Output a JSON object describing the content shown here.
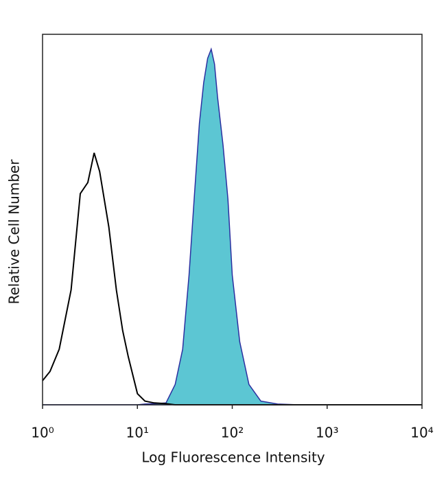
{
  "chart_data": {
    "type": "line",
    "xlabel": "Log Fluorescence Intensity",
    "ylabel": "Relative Cell Number",
    "xscale": "log",
    "xlim": [
      1,
      10000
    ],
    "ylim": [
      0,
      100
    ],
    "xticks": [
      {
        "value": 1,
        "label": "10⁰"
      },
      {
        "value": 10,
        "label": "10¹"
      },
      {
        "value": 100,
        "label": "10²"
      },
      {
        "value": 1000,
        "label": "10³"
      },
      {
        "value": 10000,
        "label": "10⁴"
      }
    ],
    "x": [
      1,
      1.2,
      1.5,
      2,
      2.5,
      3,
      3.5,
      4,
      5,
      6,
      7,
      8,
      10,
      12,
      15,
      20,
      25,
      30,
      35,
      40,
      45,
      50,
      55,
      60,
      65,
      70,
      80,
      90,
      100,
      120,
      150,
      200,
      300,
      500,
      1000,
      10000
    ],
    "series": [
      {
        "color": "#2b2fa0",
        "filled": true,
        "fill_color": "#5cc6d3",
        "values": [
          0,
          0,
          0,
          0,
          0,
          0,
          0,
          0,
          0,
          0,
          0,
          0,
          0,
          0.2,
          0.3,
          0.5,
          5.5,
          15,
          35,
          57,
          76,
          87,
          93.5,
          96,
          92,
          83,
          70,
          55.5,
          35,
          17,
          5.5,
          1,
          0.2,
          0,
          0,
          0
        ]
      },
      {
        "color": "#000000",
        "filled": false,
        "values": [
          6.5,
          9,
          15,
          31,
          57,
          60,
          68,
          63,
          48,
          31,
          20,
          13,
          3,
          1,
          0.5,
          0.3,
          0,
          0,
          0,
          0,
          0,
          0,
          0,
          0,
          0,
          0,
          0,
          0,
          0,
          0,
          0,
          0,
          0,
          0,
          0,
          0
        ]
      }
    ]
  }
}
